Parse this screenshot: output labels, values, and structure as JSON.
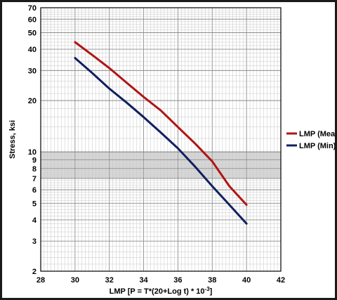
{
  "chart_data": {
    "type": "line",
    "xlabel": "LMP [P = T*(20+Log t) * 10",
    "xlabel_superscript": "-3",
    "xlabel_suffix": "]",
    "ylabel": "Stress, ksi",
    "xlim": [
      28,
      42
    ],
    "ylim": [
      2,
      70
    ],
    "yscale": "log",
    "x_ticks": [
      "28",
      "30",
      "32",
      "34",
      "36",
      "38",
      "40",
      "42"
    ],
    "y_ticks": [
      "2",
      "3",
      "4",
      "5",
      "6",
      "7",
      "8",
      "9",
      "10",
      "20",
      "30",
      "40",
      "50",
      "60",
      "70"
    ],
    "grid": true,
    "shaded_band": [
      7,
      10
    ],
    "legend_position": "right",
    "series": [
      {
        "name": "LMP (Mean)",
        "color": "#b01414",
        "x": [
          30,
          31,
          32,
          33,
          34,
          35,
          36,
          37,
          38,
          39,
          40
        ],
        "y": [
          44,
          37,
          31,
          25.5,
          21,
          17.5,
          14,
          11.2,
          8.8,
          6.3,
          4.9
        ]
      },
      {
        "name": "LMP (Min)",
        "color": "#10205e",
        "x": [
          30,
          31,
          32,
          33,
          34,
          35,
          36,
          37,
          38,
          39,
          40
        ],
        "y": [
          35.5,
          29,
          23.5,
          19.5,
          16,
          13,
          10.5,
          8.2,
          6.3,
          4.9,
          3.8
        ]
      }
    ]
  }
}
